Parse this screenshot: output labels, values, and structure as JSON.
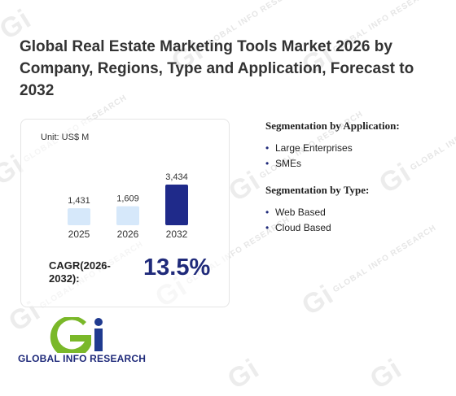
{
  "page": {
    "title": "Global Real Estate Marketing Tools Market 2026 by Company, Regions, Type and Application, Forecast to 2032"
  },
  "watermark": {
    "mark": "Gi",
    "text": "GLOBAL INFO RESEARCH"
  },
  "chart_data": {
    "type": "bar",
    "unit_label": "Unit: US$ M",
    "categories": [
      "2025",
      "2026",
      "2032"
    ],
    "values": [
      1431,
      1609,
      3434
    ],
    "value_labels": [
      "1,431",
      "1,609",
      "3,434"
    ],
    "colors": [
      "#d6e8fa",
      "#d6e8fa",
      "#1f2a8a"
    ]
  },
  "cagr": {
    "label": "CAGR(2026-2032):",
    "value": "13.5%"
  },
  "segments": {
    "application": {
      "title": "Segmentation by Application:",
      "items": [
        "Large Enterprises",
        "SMEs"
      ]
    },
    "type": {
      "title": "Segmentation by Type:",
      "items": [
        "Web Based",
        "Cloud Based"
      ]
    }
  },
  "logo": {
    "text": "GLOBAL INFO RESEARCH",
    "brand_blue": "#1f3a8f",
    "brand_green": "#7ab829"
  }
}
